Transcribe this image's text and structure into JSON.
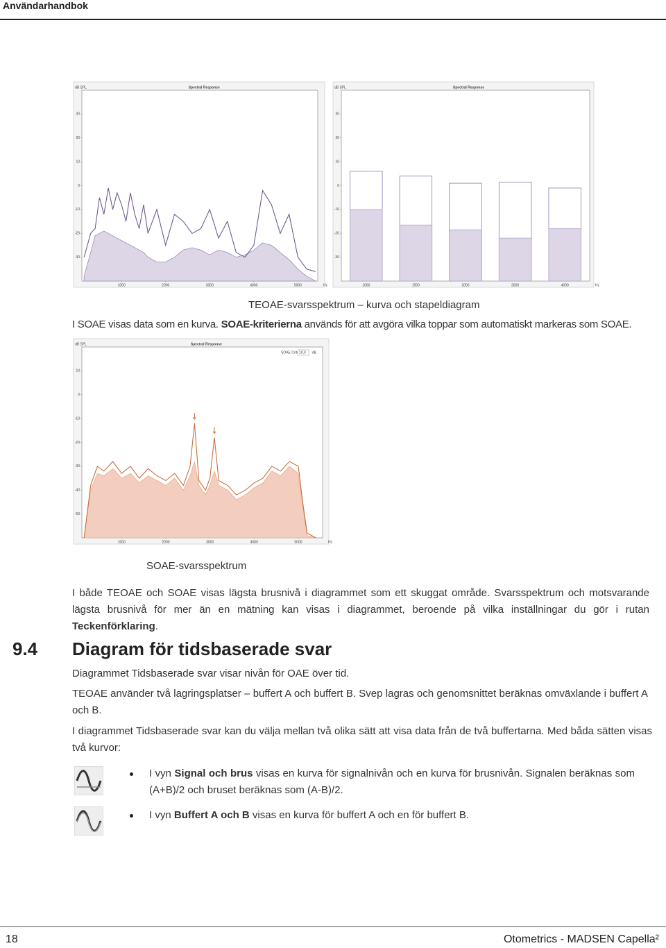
{
  "header": {
    "title": "Användarhandbok"
  },
  "chart_data": [
    {
      "type": "line",
      "title": "Spectral Response",
      "y_label": "dB SPL",
      "x_label": "Hz",
      "x": [
        150,
        300,
        400,
        500,
        600,
        700,
        800,
        900,
        1000,
        1100,
        1200,
        1300,
        1400,
        1500,
        1600,
        1800,
        2000,
        2200,
        2400,
        2600,
        2800,
        3000,
        3200,
        3400,
        3600,
        3800,
        4000,
        4200,
        4400,
        4600,
        4800,
        5000,
        5200,
        5400
      ],
      "series": [
        {
          "color": "#6e5a94",
          "values": [
            -30,
            -20,
            -18,
            -5,
            -12,
            -1,
            -10,
            -3,
            -8,
            -15,
            -3,
            -12,
            -18,
            -8,
            -20,
            -10,
            -25,
            -12,
            -15,
            -20,
            -18,
            -10,
            -22,
            -15,
            -28,
            -30,
            -25,
            -2,
            -8,
            -20,
            -12,
            -30,
            -35,
            -36
          ]
        },
        {
          "color": "#9a8db6",
          "fill": "#ddd6e7",
          "area": true,
          "values": [
            -38,
            -28,
            -21,
            -20,
            -19,
            -20,
            -21,
            -22,
            -23,
            -24,
            -25,
            -26,
            -27,
            -28,
            -30,
            -32,
            -32,
            -30,
            -27,
            -26,
            -27,
            -29,
            -27,
            -28,
            -30,
            -29,
            -27,
            -24,
            -25,
            -28,
            -31,
            -35,
            -38,
            -40
          ]
        }
      ],
      "xlim": [
        100,
        5450
      ],
      "ylim": [
        -40,
        40
      ],
      "xticks": [
        1000,
        2000,
        3000,
        4000,
        5000
      ],
      "yticks": [
        -30,
        -20,
        -10,
        0,
        10,
        20,
        30
      ]
    },
    {
      "type": "bar",
      "title": "Spectral Response",
      "y_label": "dB SPL",
      "x_label": "Hz",
      "categories": [
        "1000",
        "1500",
        "2000",
        "3000",
        "4000"
      ],
      "series": [
        {
          "color": "#8a7bab",
          "fill": "#ffffff",
          "values": [
            6,
            4,
            1,
            1.5,
            -1
          ]
        },
        {
          "color": "#b0a5c8",
          "fill": "#ddd6e7",
          "values": [
            -10,
            -16.5,
            -18.5,
            -22,
            -18
          ]
        }
      ],
      "ylim": [
        -40,
        40
      ],
      "yticks": [
        -30,
        -20,
        -10,
        0,
        10,
        20,
        30
      ]
    },
    {
      "type": "line",
      "title": "Spectral Response",
      "y_label": "dB SPL",
      "x_label": "Hz",
      "soae_criteria": {
        "label": "SOAE Criteria",
        "value": "10,0",
        "unit": "dB"
      },
      "x": [
        150,
        300,
        450,
        600,
        800,
        1000,
        1200,
        1400,
        1600,
        1800,
        2000,
        2200,
        2400,
        2550,
        2650,
        2750,
        2900,
        3000,
        3100,
        3200,
        3400,
        3600,
        3800,
        4000,
        4200,
        4400,
        4600,
        4800,
        5000,
        5100,
        5200,
        5400
      ],
      "series": [
        {
          "color": "#c8703f",
          "values": [
            -60,
            -38,
            -30,
            -32,
            -28,
            -33,
            -30,
            -35,
            -31,
            -34,
            -36,
            -33,
            -38,
            -30,
            -12,
            -36,
            -40,
            -35,
            -18,
            -36,
            -38,
            -42,
            -40,
            -37,
            -35,
            -30,
            -32,
            -28,
            -30,
            -45,
            -58,
            -60
          ]
        },
        {
          "color": "#e9a98e",
          "fill": "#f3cdbd",
          "area": true,
          "values": [
            -60,
            -40,
            -33,
            -34,
            -31,
            -35,
            -33,
            -37,
            -34,
            -36,
            -38,
            -35,
            -40,
            -34,
            -28,
            -38,
            -42,
            -38,
            -32,
            -38,
            -40,
            -44,
            -42,
            -39,
            -37,
            -32,
            -34,
            -30,
            -33,
            -47,
            -59,
            -60
          ]
        }
      ],
      "markers_x": [
        2650,
        3100
      ],
      "marker_color": "#c8703f",
      "xlim": [
        100,
        5550
      ],
      "ylim": [
        -60,
        20
      ],
      "xticks": [
        1000,
        2000,
        3000,
        4000,
        5000
      ],
      "yticks": [
        -50,
        -40,
        -30,
        -20,
        -10,
        0,
        10
      ]
    }
  ],
  "caption_1": "TEOAE-svarsspektrum – kurva och stapeldiagram",
  "paragraph_1": [
    "I SOAE visas data som en kurva. ",
    "SOAE-kriterierna",
    " används för att avgöra vilka toppar som automatiskt markeras som SOAE."
  ],
  "caption_2": "SOAE-svarsspektrum",
  "paragraph_2": [
    "I både TEOAE och SOAE visas lägsta brusnivå i diagrammet som ett skuggat område. Svarsspektrum och motsvarande lägsta brusnivå för mer än en mätning kan visas i diagrammet, beroende på vilka inställningar du gör i rutan ",
    "Teckenförklaring",
    "."
  ],
  "section": {
    "number": "9.4",
    "title": "Diagram för tidsbaserade svar",
    "paragraphs": [
      "Diagrammet Tidsbaserade svar visar nivån för OAE över tid.",
      "TEOAE använder två lagringsplatser – buffert A och buffert B. Svep lagras och genomsnittet beräknas omväxlande i buffert A och B.",
      "I diagrammet Tidsbaserade svar kan du välja mellan två olika sätt att visa data från de två buffertarna. Med båda sätten visas två kurvor:"
    ],
    "bullets": [
      [
        "I vyn ",
        "Signal och brus",
        " visas en kurva för signalnivån och en kurva för brusnivån. Signalen beräknas som (A+B)/2 och bruset beräknas som (A-B)/2."
      ],
      [
        "I vyn ",
        "Buffert A och B",
        " visas en kurva för buffert A och en för buffert B."
      ]
    ]
  },
  "footer": {
    "page": "18",
    "product": "Otometrics - MADSEN Capella²"
  }
}
